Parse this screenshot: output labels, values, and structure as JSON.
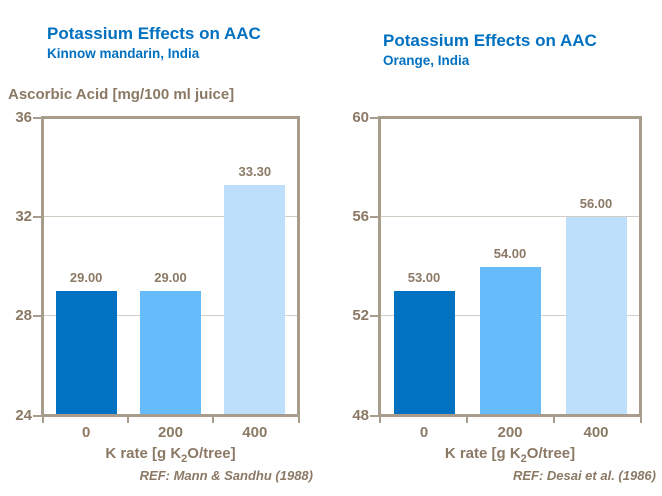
{
  "slide": {
    "background": "#ffffff"
  },
  "colors": {
    "title_blue": "#0070C0",
    "axis_text": "#8B7965",
    "frame": "#A89C8C",
    "gridline": "#D3CCC4",
    "bar_colors": [
      "#0072C1",
      "#66BBFB",
      "#BDDFFB"
    ]
  },
  "chart_data": [
    {
      "type": "bar",
      "title": "Potassium Effects on AAC",
      "subtitle": "Kinnow mandarin, India",
      "ylabel": "Ascorbic Acid [mg/100 ml juice]",
      "xlabel": "K rate [g K2O/tree]",
      "xlabel_parts": [
        "K rate [g K",
        "2",
        "O/tree]"
      ],
      "categories": [
        "0",
        "200",
        "400"
      ],
      "values": [
        29.0,
        29.0,
        33.3
      ],
      "value_labels": [
        "29.00",
        "29.00",
        "33.30"
      ],
      "ylim": [
        24,
        36
      ],
      "yticks": [
        24,
        28,
        32,
        36
      ],
      "grid": true,
      "legend": false,
      "ref": "REF: Mann & Sandhu (1988)"
    },
    {
      "type": "bar",
      "title": "Potassium Effects on AAC",
      "subtitle": "Orange, India",
      "ylabel": "",
      "xlabel": "K rate [g K2O/tree]",
      "xlabel_parts": [
        "K rate [g K",
        "2",
        "O/tree]"
      ],
      "categories": [
        "0",
        "200",
        "400"
      ],
      "values": [
        53.0,
        54.0,
        56.0
      ],
      "value_labels": [
        "53.00",
        "54.00",
        "56.00"
      ],
      "ylim": [
        48,
        60
      ],
      "yticks": [
        48,
        52,
        56,
        60
      ],
      "grid": true,
      "legend": false,
      "ref": "REF: Desai et al. (1986)"
    }
  ]
}
